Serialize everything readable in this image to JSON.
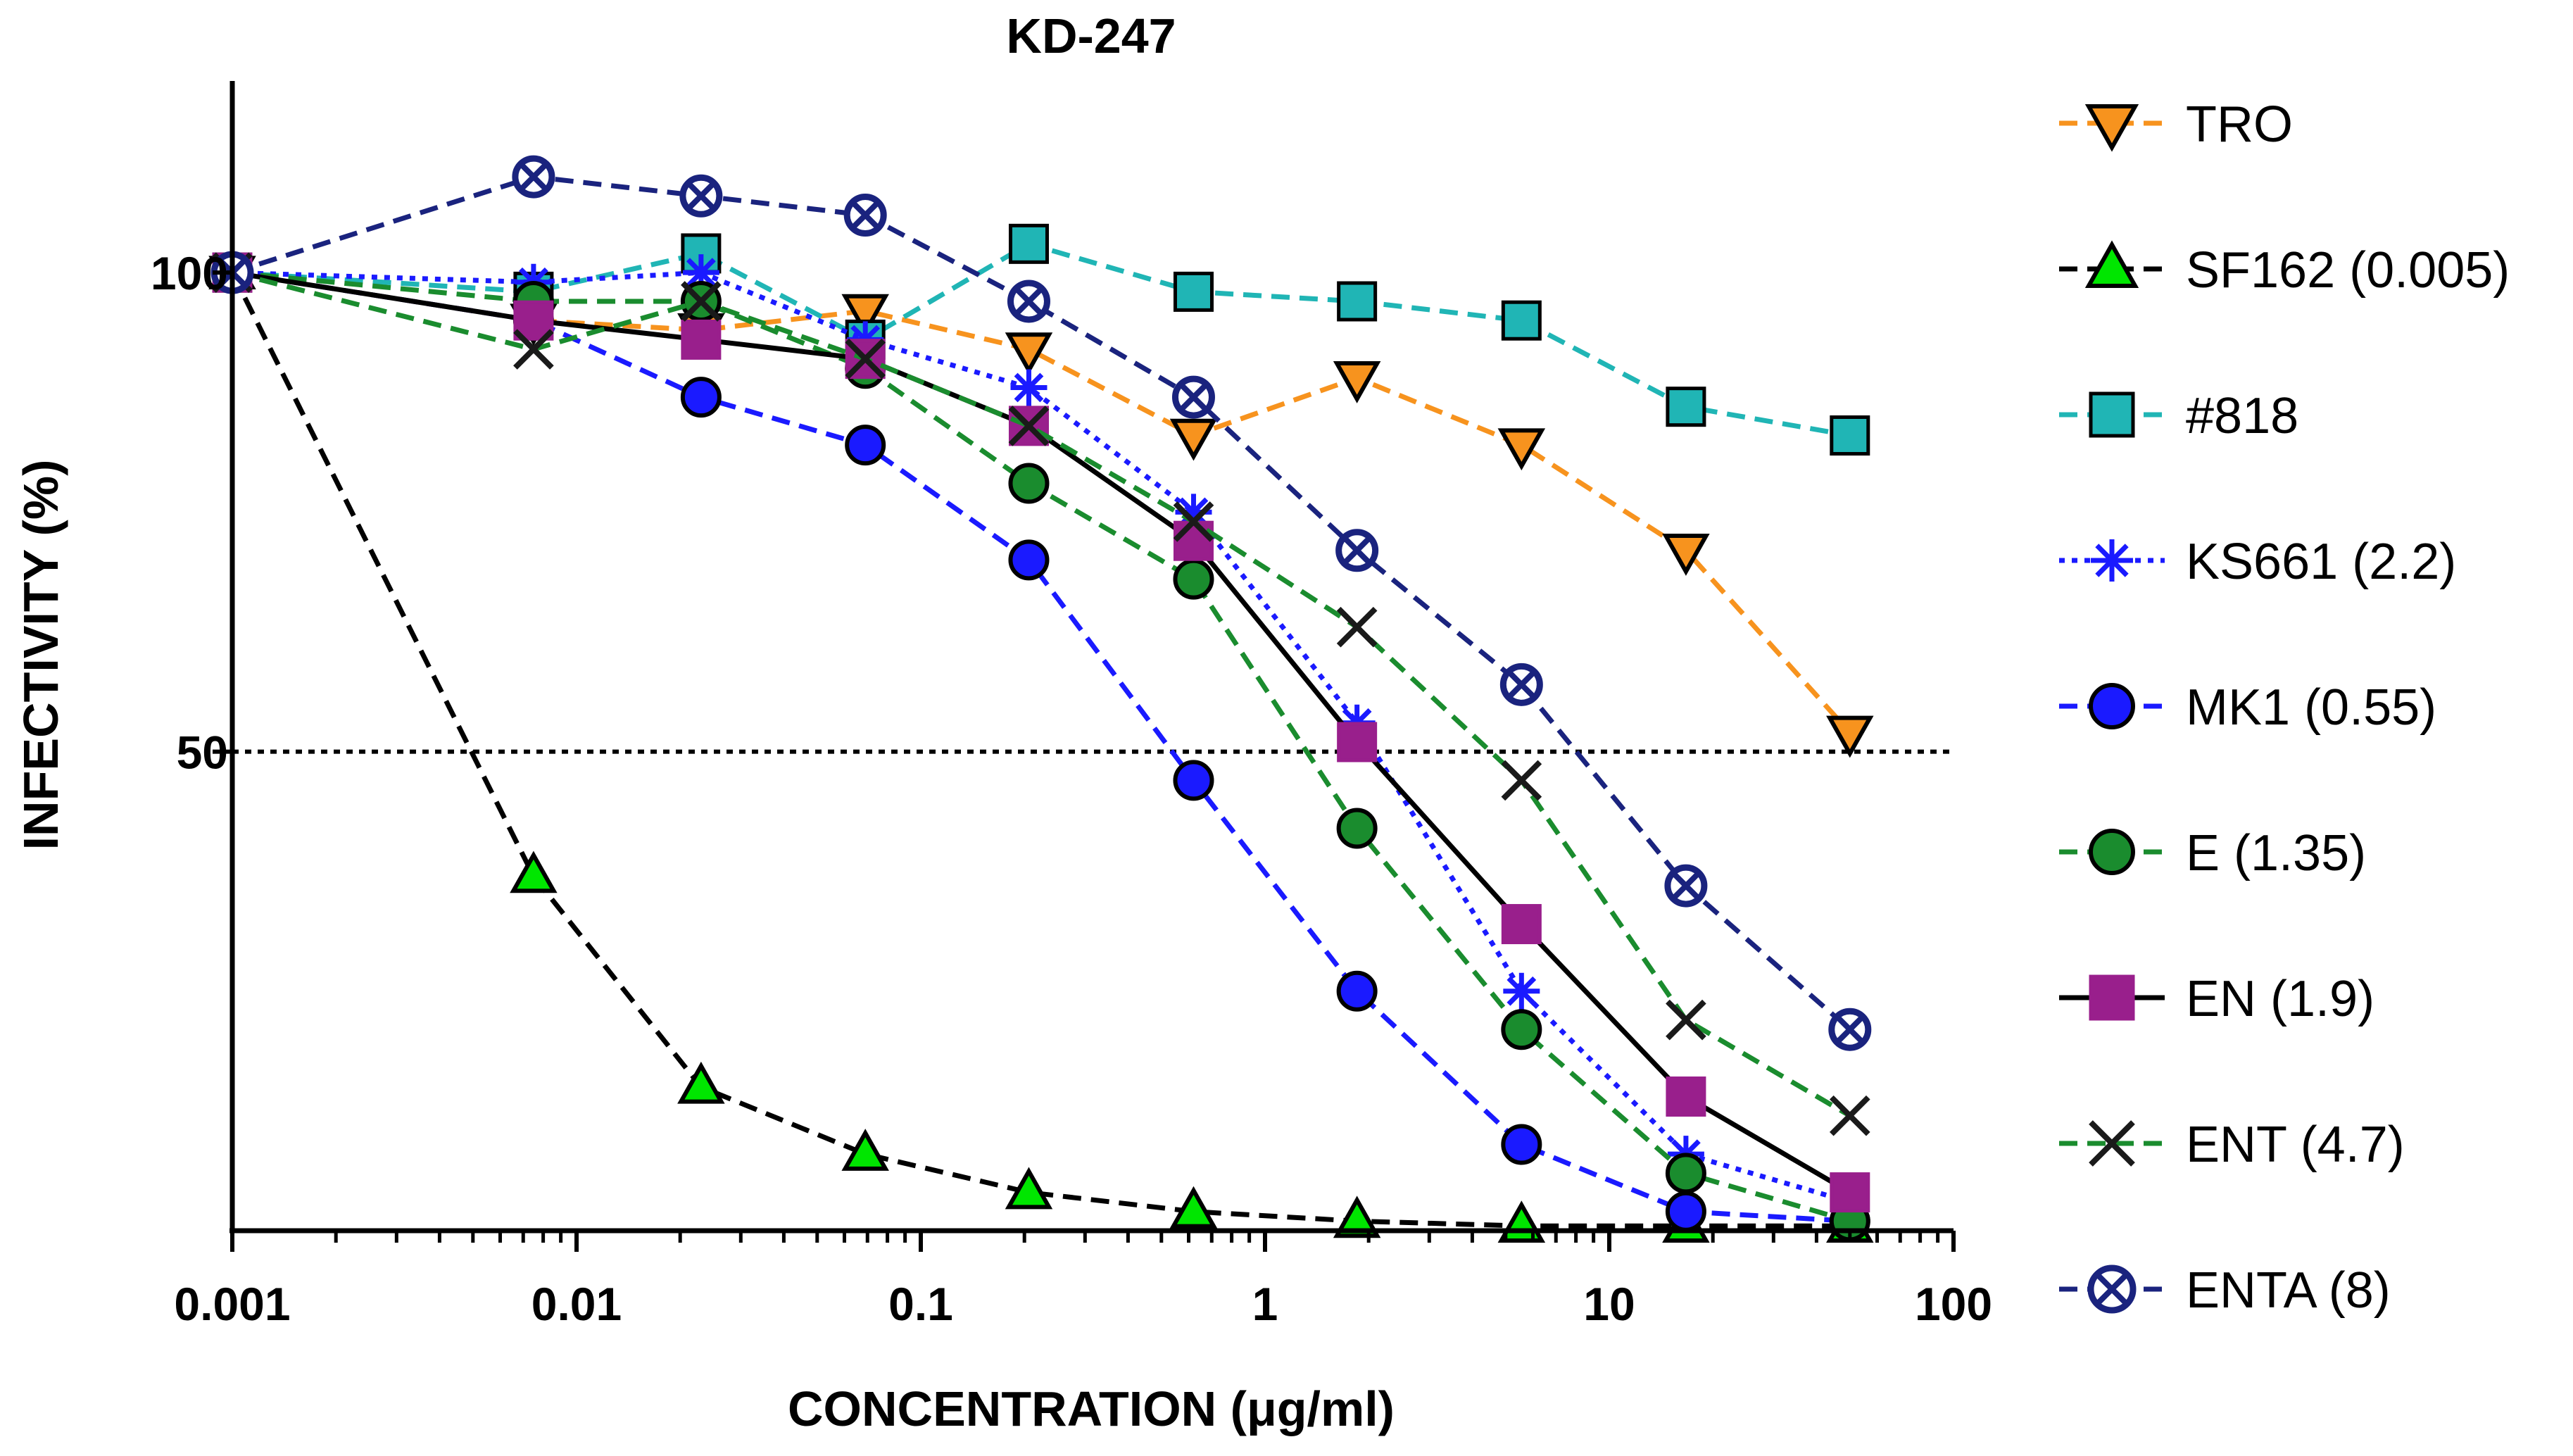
{
  "chart_data": {
    "type": "line",
    "title": "KD-247",
    "xlabel": "CONCENTRATION (μg/ml)",
    "ylabel": "INFECTIVITY (%)",
    "xscale": "log",
    "xlim": [
      0.001,
      100
    ],
    "ylim": [
      0,
      120
    ],
    "x_ticks": [
      {
        "value": 0.001,
        "label": "0.001"
      },
      {
        "value": 0.01,
        "label": "0.01"
      },
      {
        "value": 0.1,
        "label": "0.1"
      },
      {
        "value": 1,
        "label": "1"
      },
      {
        "value": 10,
        "label": "10"
      },
      {
        "value": 100,
        "label": "100"
      }
    ],
    "y_ticks": [
      {
        "value": 50,
        "label": "50"
      },
      {
        "value": 100,
        "label": "100"
      }
    ],
    "reference_line": {
      "y": 50,
      "style": "dotted"
    },
    "legend_position": "right",
    "x": [
      0.001,
      0.0075,
      0.023,
      0.069,
      0.206,
      0.62,
      1.85,
      5.56,
      16.7,
      50
    ],
    "series": [
      {
        "name": "TRO",
        "color": "#f7931e",
        "marker": "triangle-down",
        "line": "dashed",
        "values": [
          100,
          95,
          94,
          96,
          92,
          83,
          89,
          82,
          71,
          52
        ]
      },
      {
        "name": "SF162 (0.005)",
        "color": "#00e600",
        "marker": "triangle-up",
        "line": "dashed-black",
        "values": [
          100,
          37,
          15,
          8,
          4,
          2,
          1,
          0.5,
          0.5,
          0.5
        ]
      },
      {
        "name": "#818",
        "color": "#20b5b5",
        "marker": "square",
        "line": "dashed",
        "values": [
          100,
          98,
          102,
          93,
          103,
          98,
          97,
          95,
          86,
          83
        ]
      },
      {
        "name": "KS661 (2.2)",
        "color": "#1a1aff",
        "marker": "asterisk",
        "line": "dotted",
        "values": [
          100,
          99,
          100,
          93,
          88,
          75,
          53,
          25,
          8,
          3
        ]
      },
      {
        "name": "MK1 (0.55)",
        "color": "#1a1aff",
        "marker": "circle",
        "line": "dashed",
        "values": [
          100,
          95,
          87,
          82,
          70,
          47,
          25,
          9,
          2,
          1
        ]
      },
      {
        "name": "E (1.35)",
        "color": "#1a8c2e",
        "marker": "circle",
        "line": "dashed",
        "values": [
          100,
          97,
          97,
          90,
          78,
          68,
          42,
          21,
          6,
          1
        ]
      },
      {
        "name": "EN (1.9)",
        "color": "#991f8c",
        "marker": "square",
        "line": "solid-black",
        "values": [
          100,
          95,
          93,
          91,
          84,
          72,
          51,
          32,
          14,
          4
        ]
      },
      {
        "name": "ENT (4.7)",
        "color": "#1a1a1a",
        "marker": "x",
        "line": "dashed-green",
        "values": [
          100,
          92,
          97,
          91,
          84,
          74,
          63,
          47,
          22,
          12
        ]
      },
      {
        "name": "ENTA (8)",
        "color": "#1a237e",
        "marker": "circle-x",
        "line": "dashed",
        "values": [
          100,
          110,
          108,
          106,
          97,
          87,
          71,
          57,
          36,
          21
        ]
      }
    ]
  }
}
